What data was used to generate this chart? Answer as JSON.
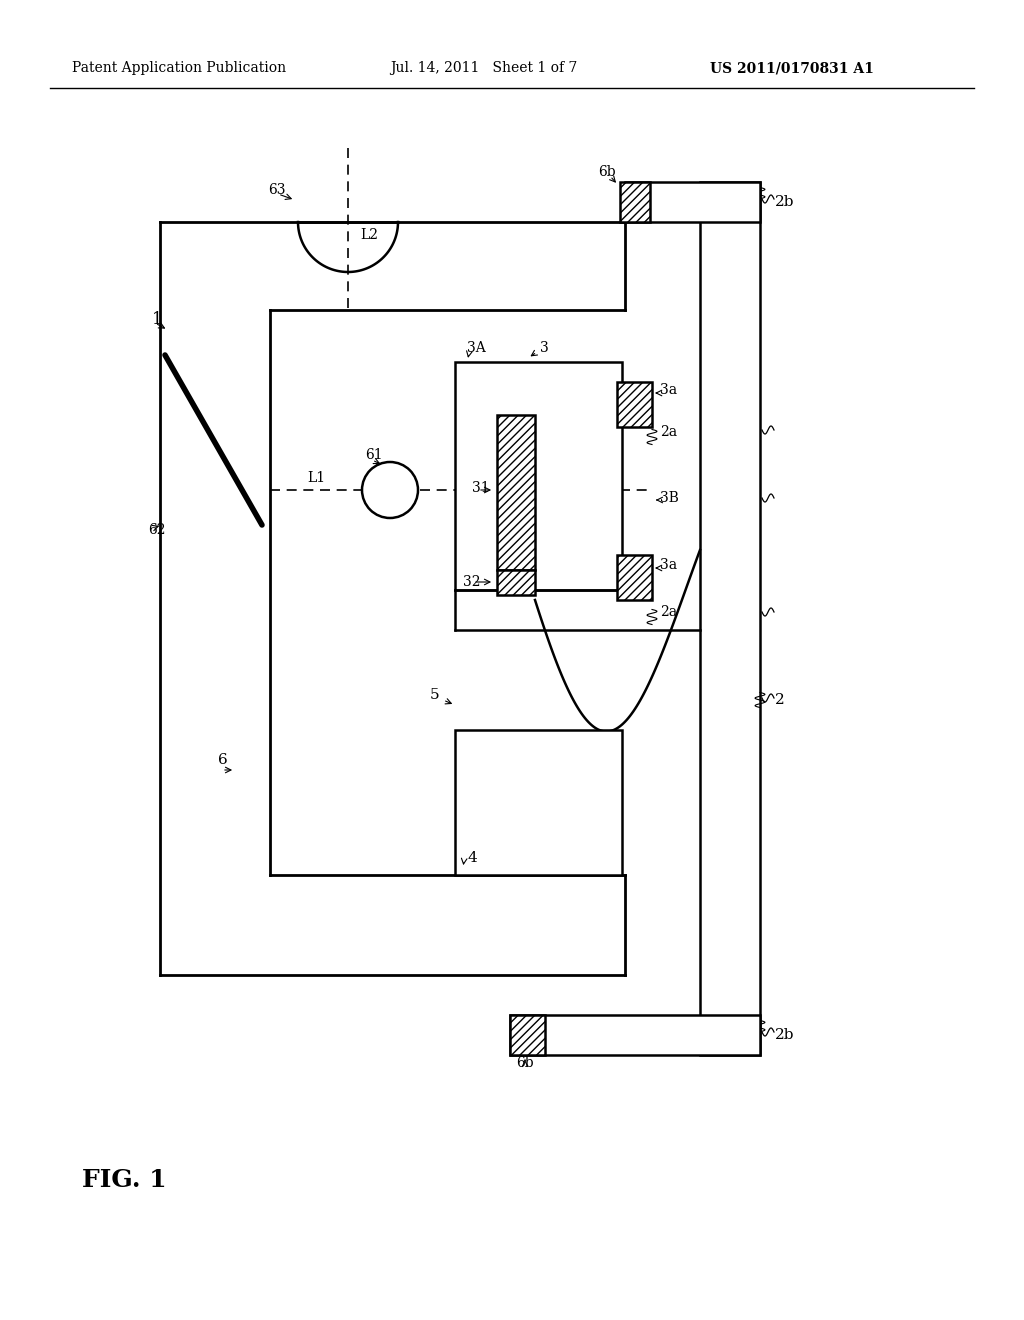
{
  "header_left": "Patent Application Publication",
  "header_center": "Jul. 14, 2011   Sheet 1 of 7",
  "header_right": "US 2011/0170831 A1",
  "figure_label": "FIG. 1",
  "background_color": "#ffffff",
  "line_color": "#000000"
}
